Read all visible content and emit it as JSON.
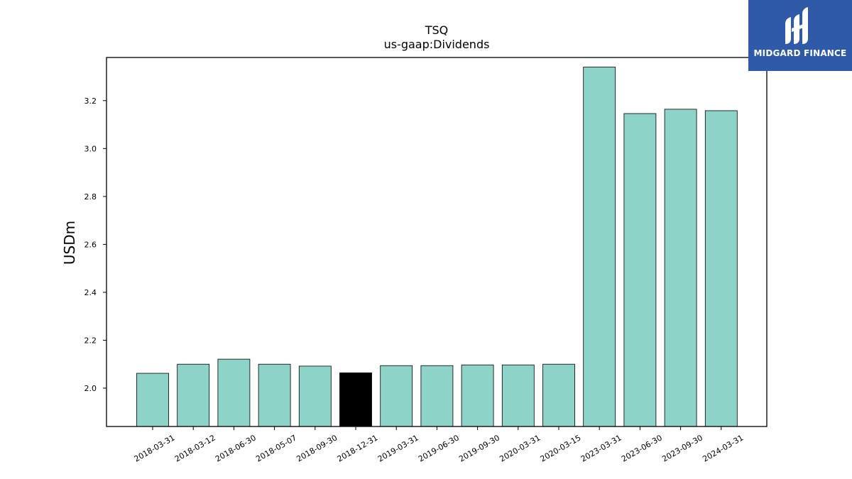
{
  "chart_data": {
    "type": "bar",
    "title": "TSQ",
    "subtitle": "us-gaap:Dividends",
    "xlabel": "",
    "ylabel": "USDm",
    "categories": [
      "2018-03-31",
      "2018-03-12",
      "2018-06-30",
      "2018-05-07",
      "2018-09-30",
      "2018-12-31",
      "2019-03-31",
      "2019-06-30",
      "2019-09-30",
      "2020-03-31",
      "2020-03-15",
      "2023-03-31",
      "2023-06-30",
      "2023-09-30",
      "2024-03-31"
    ],
    "values": [
      2.062,
      2.1,
      2.121,
      2.1,
      2.092,
      2.064,
      2.094,
      2.094,
      2.097,
      2.097,
      2.1,
      3.34,
      3.146,
      3.164,
      3.158
    ],
    "highlight_index": 5,
    "ylim": [
      1.84,
      3.38
    ],
    "yticks": [
      2.0,
      2.2,
      2.4,
      2.6,
      2.8,
      3.0,
      3.2
    ],
    "grid": false,
    "colors": {
      "bar": "#8dd3c7",
      "highlight": "#000000",
      "edge": "#000000"
    }
  },
  "logo": {
    "text": "MIDGARD FINANCE"
  }
}
